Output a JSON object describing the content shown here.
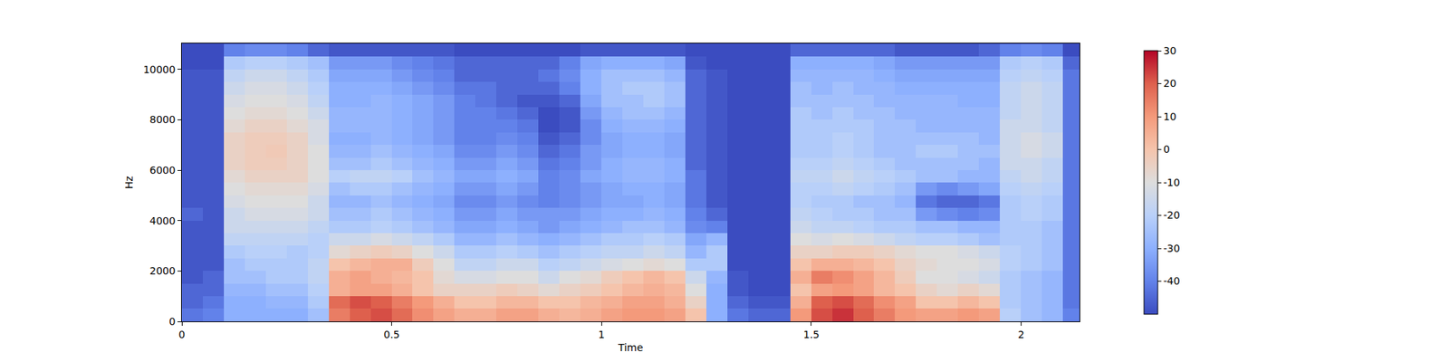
{
  "chart_data": {
    "type": "heatmap",
    "x_label": "Time",
    "y_label": "Hz",
    "xlim": [
      0,
      2.139
    ],
    "xticks": [
      0,
      0.5,
      1,
      1.5,
      2
    ],
    "ylim": [
      0,
      11025
    ],
    "yticks": [
      0,
      2000,
      4000,
      6000,
      8000,
      10000
    ],
    "zlim": [
      -50,
      30
    ],
    "zticks": [
      -40,
      -30,
      -20,
      -10,
      0,
      10,
      20,
      30
    ],
    "x": [
      0.025,
      0.075,
      0.125,
      0.175,
      0.225,
      0.275,
      0.325,
      0.375,
      0.425,
      0.475,
      0.525,
      0.575,
      0.625,
      0.675,
      0.725,
      0.775,
      0.825,
      0.875,
      0.925,
      0.975,
      1.025,
      1.075,
      1.125,
      1.175,
      1.225,
      1.275,
      1.325,
      1.375,
      1.425,
      1.475,
      1.525,
      1.575,
      1.625,
      1.675,
      1.725,
      1.775,
      1.825,
      1.875,
      1.925,
      1.975,
      2.025,
      2.075,
      2.125
    ],
    "y": [
      250,
      750,
      1250,
      1750,
      2250,
      2750,
      3250,
      3750,
      4250,
      4750,
      5250,
      5750,
      6250,
      6750,
      7250,
      7750,
      8250,
      8750,
      9250,
      9750,
      10250,
      10750
    ],
    "z": [
      [
        -42,
        -40,
        -30,
        -30,
        -30,
        -30,
        -25,
        15,
        20,
        22,
        18,
        12,
        8,
        5,
        5,
        8,
        8,
        5,
        3,
        5,
        8,
        10,
        10,
        8,
        0,
        -30,
        -42,
        -45,
        -45,
        10,
        22,
        25,
        20,
        15,
        10,
        8,
        8,
        10,
        8,
        -20,
        -25,
        -28,
        -40
      ],
      [
        -45,
        -42,
        -30,
        -30,
        -28,
        -28,
        -22,
        18,
        22,
        20,
        15,
        10,
        5,
        0,
        0,
        3,
        3,
        0,
        0,
        3,
        5,
        8,
        8,
        5,
        -5,
        -30,
        -45,
        -48,
        -48,
        5,
        20,
        22,
        18,
        12,
        8,
        0,
        0,
        3,
        0,
        -22,
        -25,
        -28,
        -42
      ],
      [
        -45,
        -45,
        -28,
        -28,
        -25,
        -25,
        -20,
        5,
        8,
        8,
        5,
        0,
        -5,
        -5,
        -5,
        -3,
        -5,
        -8,
        -5,
        -3,
        0,
        3,
        5,
        3,
        -10,
        -30,
        -48,
        -50,
        -50,
        0,
        8,
        10,
        8,
        3,
        0,
        -5,
        -8,
        -5,
        -8,
        -22,
        -25,
        -28,
        -42
      ],
      [
        -48,
        -45,
        -25,
        -25,
        -22,
        -22,
        -18,
        5,
        8,
        5,
        3,
        0,
        -8,
        -12,
        -12,
        -10,
        -10,
        -15,
        -10,
        -8,
        -3,
        0,
        3,
        0,
        -15,
        -28,
        -48,
        -50,
        -50,
        5,
        15,
        12,
        8,
        3,
        -3,
        -10,
        -10,
        -12,
        -15,
        -22,
        -25,
        -28,
        -42
      ],
      [
        -48,
        -48,
        -25,
        -22,
        -22,
        -22,
        -18,
        0,
        3,
        5,
        5,
        -3,
        -10,
        -18,
        -18,
        -15,
        -15,
        -20,
        -18,
        -15,
        -12,
        -10,
        -8,
        -10,
        -22,
        -22,
        -50,
        -50,
        -50,
        0,
        5,
        5,
        3,
        0,
        -5,
        -8,
        -10,
        -10,
        -12,
        -20,
        -22,
        -25,
        -42
      ],
      [
        -48,
        -48,
        -22,
        -20,
        -20,
        -22,
        -20,
        -8,
        -5,
        -3,
        -5,
        -10,
        -15,
        -22,
        -22,
        -20,
        -22,
        -25,
        -22,
        -20,
        -18,
        -18,
        -15,
        -18,
        -28,
        -22,
        -50,
        -50,
        -50,
        -5,
        -5,
        -3,
        -3,
        -5,
        -8,
        -10,
        -10,
        -12,
        -15,
        -20,
        -22,
        -25,
        -42
      ],
      [
        -48,
        -48,
        -18,
        -18,
        -18,
        -18,
        -20,
        -15,
        -15,
        -12,
        -15,
        -18,
        -22,
        -28,
        -28,
        -25,
        -28,
        -30,
        -28,
        -25,
        -22,
        -22,
        -20,
        -22,
        -32,
        -28,
        -50,
        -50,
        -50,
        -10,
        -12,
        -10,
        -12,
        -15,
        -18,
        -20,
        -20,
        -22,
        -25,
        -22,
        -22,
        -25,
        -42
      ],
      [
        -48,
        -48,
        -15,
        -15,
        -15,
        -15,
        -18,
        -22,
        -22,
        -20,
        -22,
        -25,
        -28,
        -32,
        -32,
        -30,
        -32,
        -35,
        -32,
        -30,
        -28,
        -25,
        -25,
        -28,
        -38,
        -40,
        -50,
        -50,
        -50,
        -15,
        -18,
        -18,
        -20,
        -22,
        -22,
        -25,
        -25,
        -28,
        -28,
        -22,
        -22,
        -25,
        -42
      ],
      [
        -45,
        -48,
        -15,
        -12,
        -12,
        -12,
        -15,
        -25,
        -25,
        -22,
        -25,
        -28,
        -30,
        -35,
        -35,
        -32,
        -35,
        -35,
        -35,
        -32,
        -30,
        -30,
        -28,
        -30,
        -40,
        -45,
        -50,
        -50,
        -50,
        -18,
        -20,
        -22,
        -22,
        -25,
        -25,
        -35,
        -38,
        -40,
        -38,
        -22,
        -20,
        -22,
        -42
      ],
      [
        -48,
        -48,
        -12,
        -10,
        -10,
        -10,
        -15,
        -28,
        -28,
        -25,
        -28,
        -30,
        -32,
        -38,
        -38,
        -35,
        -38,
        -40,
        -38,
        -35,
        -32,
        -32,
        -30,
        -32,
        -42,
        -48,
        -50,
        -50,
        -50,
        -20,
        -22,
        -22,
        -25,
        -25,
        -28,
        -42,
        -45,
        -45,
        -42,
        -22,
        -20,
        -22,
        -42
      ],
      [
        -48,
        -48,
        -10,
        -8,
        -8,
        -8,
        -12,
        -25,
        -22,
        -22,
        -25,
        -28,
        -30,
        -35,
        -35,
        -32,
        -35,
        -40,
        -38,
        -35,
        -32,
        -30,
        -30,
        -32,
        -42,
        -48,
        -50,
        -50,
        -50,
        -20,
        -20,
        -18,
        -20,
        -22,
        -25,
        -35,
        -38,
        -35,
        -32,
        -20,
        -18,
        -20,
        -42
      ],
      [
        -48,
        -48,
        -8,
        -5,
        -5,
        -5,
        -10,
        -20,
        -18,
        -18,
        -20,
        -25,
        -28,
        -32,
        -32,
        -30,
        -32,
        -40,
        -38,
        -32,
        -30,
        -28,
        -28,
        -30,
        -42,
        -48,
        -50,
        -50,
        -50,
        -18,
        -18,
        -15,
        -18,
        -20,
        -22,
        -25,
        -25,
        -28,
        -28,
        -18,
        -15,
        -18,
        -42
      ],
      [
        -48,
        -48,
        -5,
        -3,
        -3,
        -5,
        -10,
        -25,
        -25,
        -22,
        -25,
        -28,
        -30,
        -35,
        -35,
        -32,
        -35,
        -42,
        -40,
        -35,
        -30,
        -28,
        -28,
        -30,
        -45,
        -48,
        -50,
        -50,
        -50,
        -20,
        -20,
        -18,
        -20,
        -22,
        -25,
        -25,
        -25,
        -25,
        -28,
        -15,
        -15,
        -18,
        -42
      ],
      [
        -48,
        -48,
        -5,
        -3,
        -2,
        -5,
        -10,
        -28,
        -28,
        -25,
        -28,
        -30,
        -32,
        -38,
        -38,
        -35,
        -38,
        -45,
        -42,
        -35,
        -32,
        -30,
        -30,
        -32,
        -45,
        -48,
        -50,
        -50,
        -50,
        -22,
        -22,
        -20,
        -22,
        -25,
        -25,
        -22,
        -22,
        -25,
        -25,
        -15,
        -12,
        -15,
        -42
      ],
      [
        -48,
        -48,
        -5,
        -3,
        -3,
        -5,
        -12,
        -30,
        -30,
        -28,
        -30,
        -32,
        -35,
        -40,
        -40,
        -38,
        -40,
        -48,
        -45,
        -38,
        -32,
        -30,
        -30,
        -32,
        -45,
        -48,
        -50,
        -50,
        -50,
        -22,
        -22,
        -20,
        -22,
        -25,
        -25,
        -25,
        -25,
        -25,
        -28,
        -15,
        -12,
        -15,
        -42
      ],
      [
        -48,
        -48,
        -8,
        -5,
        -5,
        -8,
        -12,
        -28,
        -28,
        -28,
        -30,
        -32,
        -35,
        -40,
        -40,
        -40,
        -42,
        -50,
        -48,
        -38,
        -30,
        -28,
        -28,
        -30,
        -45,
        -48,
        -50,
        -50,
        -50,
        -22,
        -22,
        -22,
        -22,
        -25,
        -25,
        -28,
        -28,
        -28,
        -28,
        -15,
        -15,
        -18,
        -42
      ],
      [
        -48,
        -48,
        -10,
        -8,
        -8,
        -10,
        -15,
        -28,
        -28,
        -28,
        -30,
        -32,
        -35,
        -40,
        -40,
        -42,
        -45,
        -50,
        -48,
        -35,
        -28,
        -25,
        -25,
        -28,
        -45,
        -48,
        -50,
        -50,
        -50,
        -22,
        -25,
        -22,
        -25,
        -25,
        -28,
        -28,
        -28,
        -28,
        -28,
        -18,
        -15,
        -18,
        -42
      ],
      [
        -48,
        -48,
        -12,
        -10,
        -10,
        -12,
        -18,
        -30,
        -30,
        -28,
        -30,
        -32,
        -35,
        -40,
        -42,
        -45,
        -48,
        -48,
        -45,
        -32,
        -25,
        -25,
        -22,
        -25,
        -45,
        -48,
        -50,
        -50,
        -50,
        -25,
        -25,
        -25,
        -25,
        -28,
        -28,
        -28,
        -28,
        -30,
        -30,
        -18,
        -15,
        -18,
        -42
      ],
      [
        -48,
        -48,
        -15,
        -12,
        -12,
        -15,
        -20,
        -30,
        -30,
        -30,
        -32,
        -35,
        -38,
        -42,
        -42,
        -45,
        -45,
        -45,
        -40,
        -30,
        -25,
        -22,
        -22,
        -25,
        -45,
        -48,
        -50,
        -50,
        -50,
        -25,
        -28,
        -25,
        -28,
        -28,
        -30,
        -30,
        -30,
        -30,
        -30,
        -18,
        -15,
        -18,
        -42
      ],
      [
        -48,
        -48,
        -18,
        -15,
        -15,
        -18,
        -22,
        -32,
        -32,
        -32,
        -35,
        -38,
        -40,
        -45,
        -45,
        -45,
        -45,
        -42,
        -38,
        -30,
        -25,
        -25,
        -25,
        -28,
        -45,
        -48,
        -50,
        -50,
        -50,
        -28,
        -28,
        -28,
        -28,
        -30,
        -32,
        -32,
        -32,
        -32,
        -32,
        -20,
        -18,
        -20,
        -42
      ],
      [
        -50,
        -50,
        -22,
        -20,
        -20,
        -22,
        -25,
        -35,
        -35,
        -35,
        -38,
        -40,
        -42,
        -45,
        -45,
        -45,
        -45,
        -45,
        -40,
        -32,
        -30,
        -30,
        -30,
        -32,
        -48,
        -50,
        -50,
        -50,
        -50,
        -30,
        -30,
        -30,
        -30,
        -32,
        -35,
        -35,
        -35,
        -35,
        -35,
        -22,
        -20,
        -22,
        -45
      ],
      [
        -50,
        -50,
        -40,
        -38,
        -38,
        -40,
        -45,
        -48,
        -48,
        -48,
        -48,
        -48,
        -48,
        -50,
        -50,
        -50,
        -50,
        -50,
        -50,
        -48,
        -48,
        -48,
        -48,
        -48,
        -50,
        -50,
        -50,
        -50,
        -50,
        -45,
        -45,
        -45,
        -45,
        -45,
        -48,
        -48,
        -48,
        -48,
        -45,
        -40,
        -38,
        -40,
        -50
      ]
    ]
  }
}
